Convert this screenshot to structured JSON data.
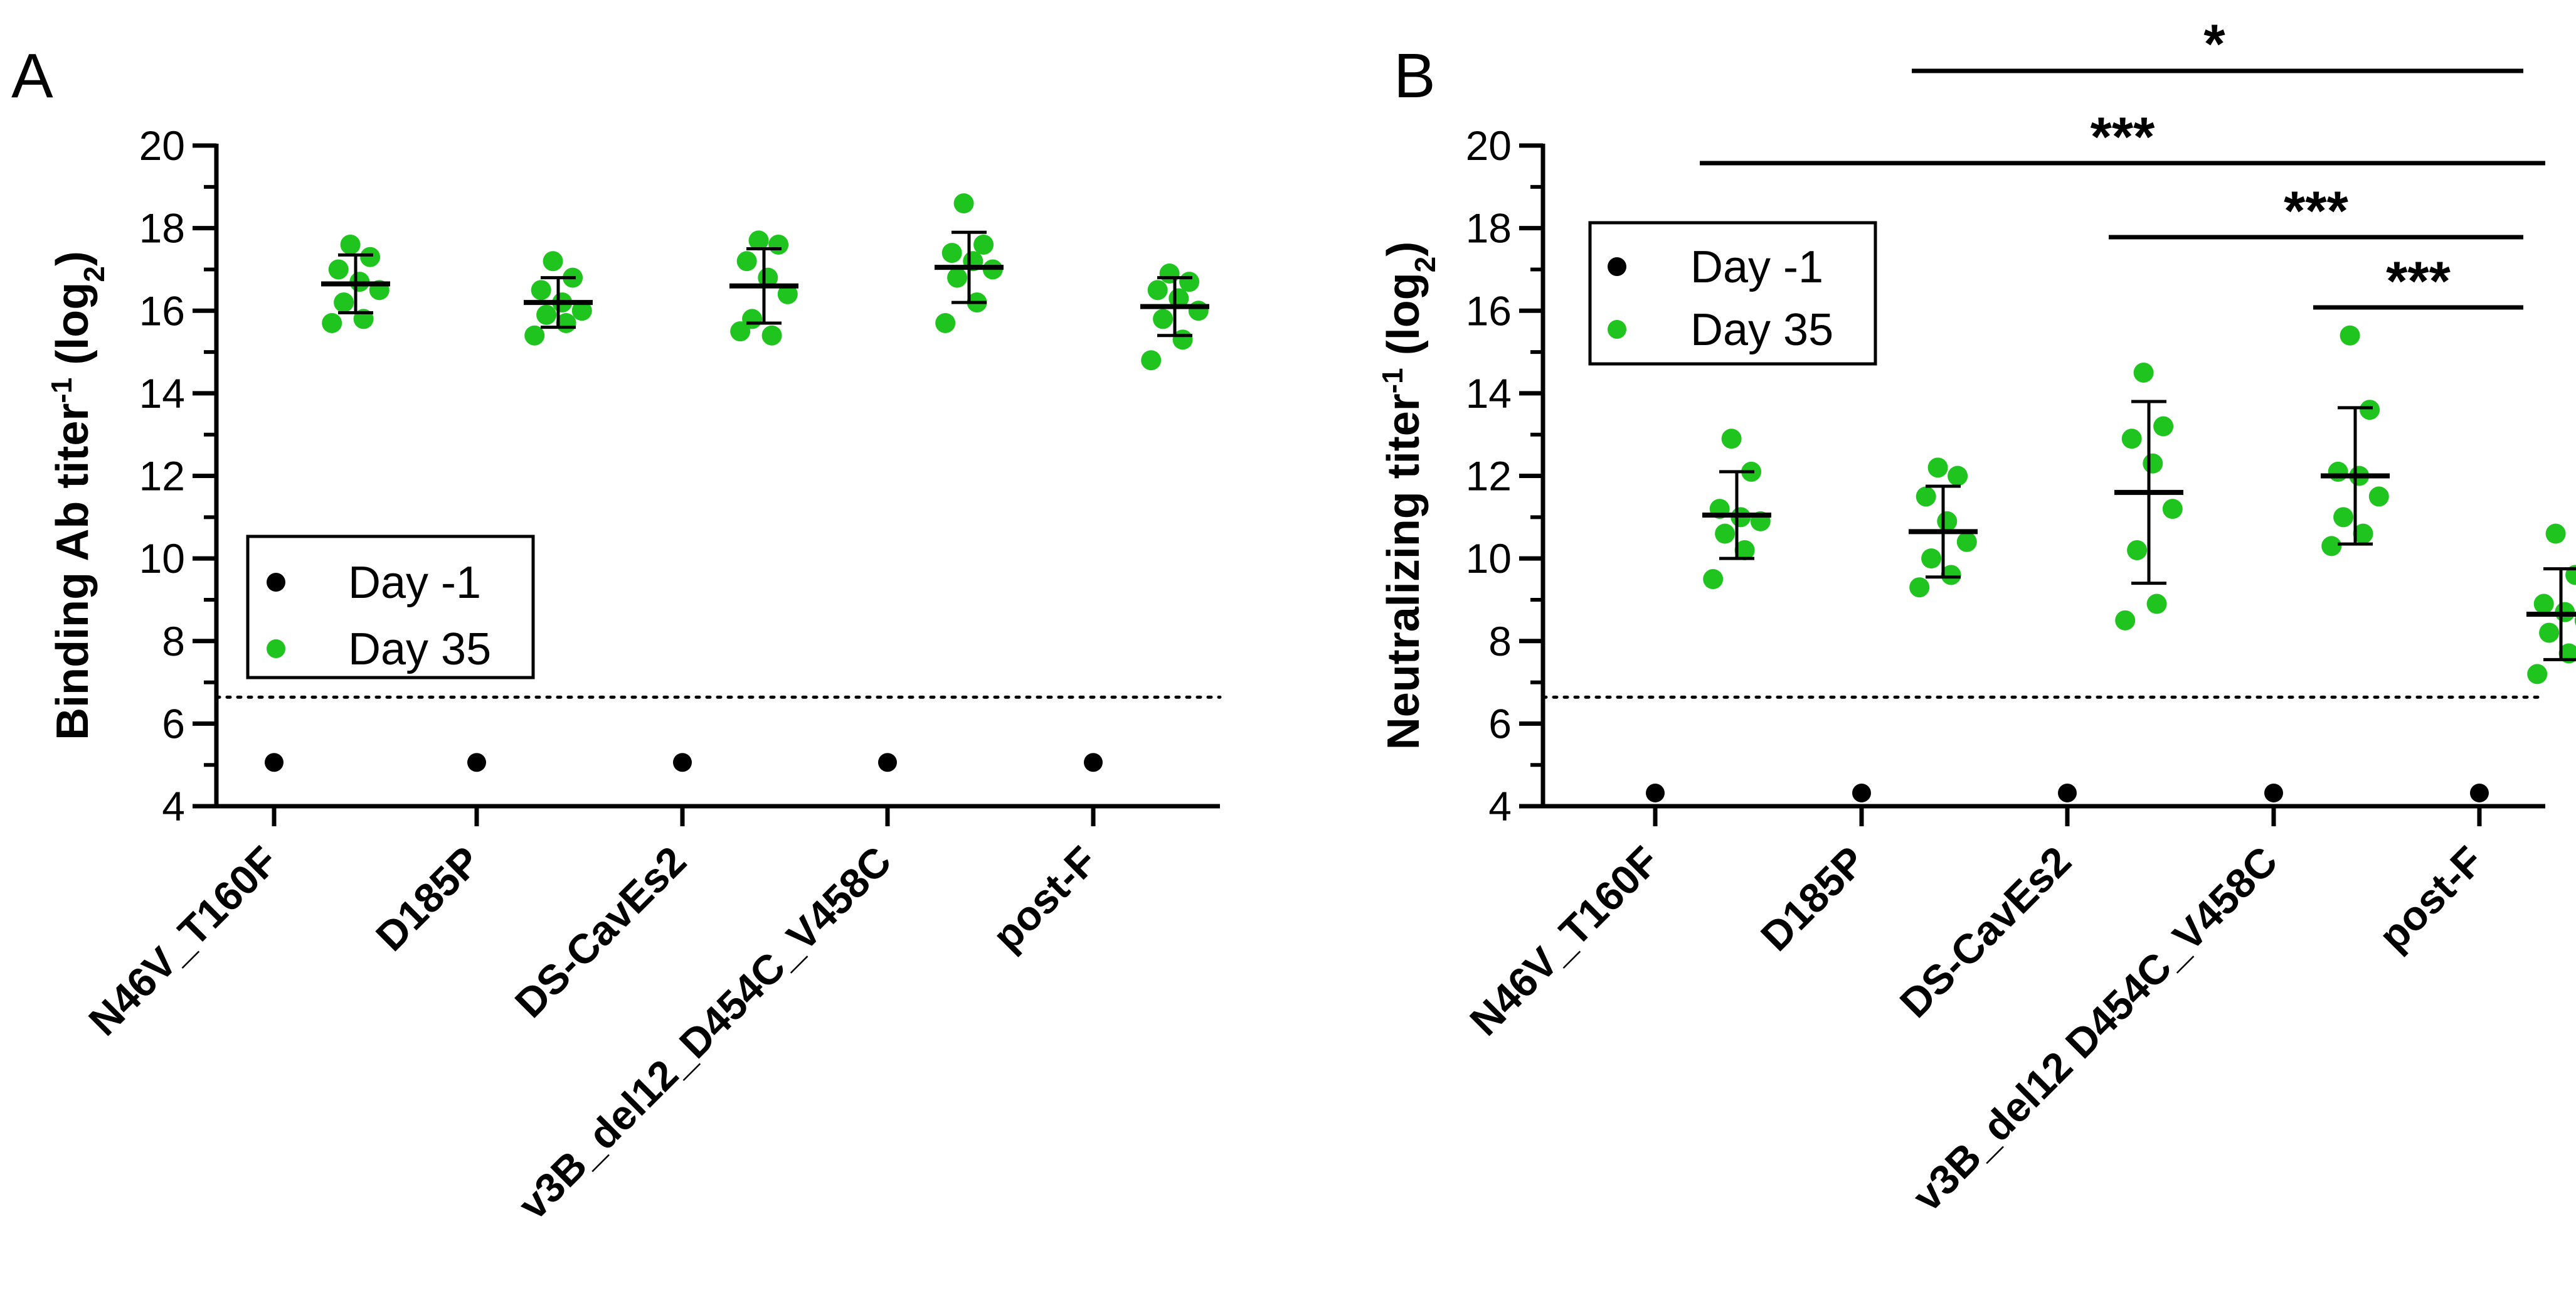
{
  "chart_data": [
    {
      "panel": "A",
      "type": "scatter",
      "title": "",
      "ylabel": "Binding Ab titer",
      "ylabel_sup": "-1",
      "ylabel_suffix": " (log",
      "ylabel_sub": "2",
      "ylabel_close": ")",
      "ylim": [
        4,
        20
      ],
      "yticks": [
        4,
        6,
        8,
        10,
        12,
        14,
        16,
        18,
        20
      ],
      "categories": [
        "N46V_T160F",
        "D185P",
        "DS-CavEs2",
        "v3B_del12_D454C_V458C",
        "post-F"
      ],
      "detection_limit": 6.64,
      "legend": [
        {
          "name": "Day -1",
          "color": "#000000"
        },
        {
          "name": "Day 35",
          "color": "#1fc41f"
        }
      ],
      "series": [
        {
          "name": "Day -1",
          "color": "#000000",
          "values": [
            [
              5.06
            ],
            [
              5.06
            ],
            [
              5.06
            ],
            [
              5.06
            ],
            [
              5.06
            ]
          ]
        },
        {
          "name": "Day 35",
          "color": "#1fc41f",
          "values": [
            [
              17.6,
              17.3,
              17.0,
              16.7,
              16.5,
              16.2,
              15.8,
              15.7
            ],
            [
              17.2,
              16.8,
              16.5,
              16.2,
              16.0,
              15.9,
              15.7,
              15.4
            ],
            [
              17.7,
              17.6,
              17.2,
              16.8,
              16.4,
              15.8,
              15.4,
              15.5
            ],
            [
              18.6,
              17.6,
              17.4,
              17.2,
              17.0,
              16.8,
              16.2,
              15.7
            ],
            [
              16.9,
              16.7,
              16.5,
              16.3,
              16.0,
              15.8,
              15.3,
              14.8
            ]
          ]
        }
      ],
      "mean": [
        16.65,
        16.2,
        16.6,
        17.05,
        16.1
      ],
      "sd": [
        0.7,
        0.6,
        0.9,
        0.85,
        0.7
      ],
      "significance": []
    },
    {
      "panel": "B",
      "type": "scatter",
      "title": "",
      "ylabel": "Neutralizing titer",
      "ylabel_sup": "-1",
      "ylabel_suffix": " (log",
      "ylabel_sub": "2",
      "ylabel_close": ")",
      "ylim": [
        4,
        20
      ],
      "yticks": [
        4,
        6,
        8,
        10,
        12,
        14,
        16,
        18,
        20
      ],
      "categories": [
        "N46V_T160F",
        "D185P",
        "DS-CavEs2",
        "v3B_del12 D454C_V458C",
        "post-F"
      ],
      "detection_limit": 6.64,
      "legend": [
        {
          "name": "Day -1",
          "color": "#000000"
        },
        {
          "name": "Day 35",
          "color": "#1fc41f"
        }
      ],
      "series": [
        {
          "name": "Day -1",
          "color": "#000000",
          "values": [
            [
              4.32
            ],
            [
              4.32
            ],
            [
              4.32
            ],
            [
              4.32
            ],
            [
              4.32
            ]
          ]
        },
        {
          "name": "Day 35",
          "color": "#1fc41f",
          "values": [
            [
              12.9,
              12.1,
              11.2,
              11.0,
              10.9,
              10.6,
              10.2,
              9.5
            ],
            [
              12.2,
              12.0,
              11.5,
              10.9,
              10.4,
              10.0,
              9.6,
              9.3
            ],
            [
              14.5,
              13.2,
              12.9,
              12.3,
              11.2,
              10.2,
              8.9,
              8.5
            ],
            [
              15.4,
              13.6,
              12.1,
              12.0,
              11.5,
              11.0,
              10.6,
              10.3
            ],
            [
              10.6,
              9.6,
              8.9,
              8.7,
              8.5,
              8.2,
              7.7,
              7.2
            ]
          ]
        }
      ],
      "mean": [
        11.05,
        10.65,
        11.6,
        12.0,
        8.65
      ],
      "sd": [
        1.05,
        1.1,
        2.2,
        1.65,
        1.1
      ],
      "significance": [
        {
          "from": 1,
          "to": 4,
          "label": "*"
        },
        {
          "from": 0,
          "to": 4,
          "label": "***"
        },
        {
          "from": 2,
          "to": 4,
          "label": "***"
        },
        {
          "from": 3,
          "to": 4,
          "label": "***"
        }
      ]
    }
  ]
}
